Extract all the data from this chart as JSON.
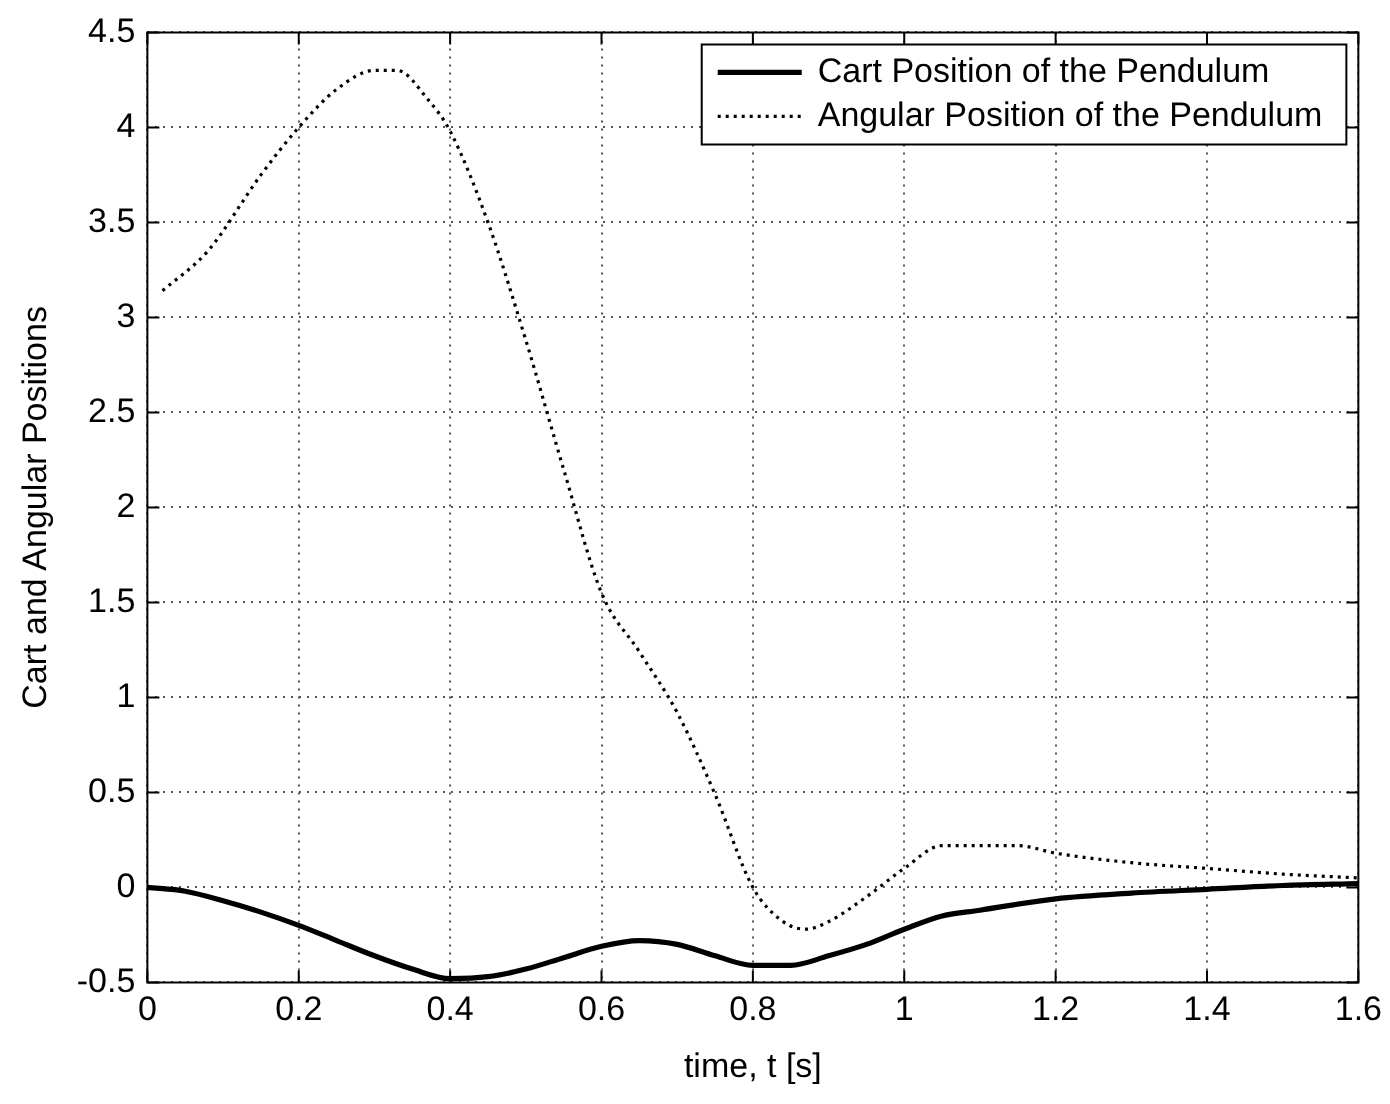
{
  "chart_data": {
    "type": "line",
    "xlabel": "time, t [s]",
    "ylabel": "Cart and Angular Positions",
    "xlim": [
      0,
      1.6
    ],
    "xticks": [
      0,
      0.2,
      0.4,
      0.6,
      0.8,
      1,
      1.2,
      1.4,
      1.6
    ],
    "ylim": [
      -0.5,
      4.5
    ],
    "yticks": [
      -0.5,
      0,
      0.5,
      1,
      1.5,
      2,
      2.5,
      3,
      3.5,
      4,
      4.5
    ],
    "grid": true,
    "legend": "top right",
    "marker": "none",
    "series": [
      {
        "name": "Cart Position of the Pendulum",
        "color": "#000000",
        "line_style": "solid",
        "x": [
          0,
          0.05,
          0.1,
          0.15,
          0.2,
          0.25,
          0.3,
          0.35,
          0.4,
          0.45,
          0.5,
          0.55,
          0.6,
          0.65,
          0.7,
          0.75,
          0.8,
          0.85,
          0.9,
          0.95,
          1.0,
          1.05,
          1.1,
          1.2,
          1.3,
          1.4,
          1.5,
          1.6
        ],
        "values": [
          0,
          -0.02,
          -0.07,
          -0.13,
          -0.2,
          -0.28,
          -0.36,
          -0.43,
          -0.48,
          -0.47,
          -0.43,
          -0.37,
          -0.31,
          -0.28,
          -0.3,
          -0.36,
          -0.41,
          -0.41,
          -0.36,
          -0.3,
          -0.22,
          -0.15,
          -0.12,
          -0.06,
          -0.03,
          -0.01,
          0.01,
          0.02
        ]
      },
      {
        "name": "Angular Position of the Pendulum",
        "color": "#000000",
        "line_style": "dotted",
        "x": [
          0.02,
          0.08,
          0.15,
          0.2,
          0.25,
          0.3,
          0.33,
          0.37,
          0.4,
          0.45,
          0.5,
          0.55,
          0.6,
          0.65,
          0.7,
          0.75,
          0.8,
          0.84,
          0.87,
          0.9,
          0.95,
          1.0,
          1.05,
          1.1,
          1.15,
          1.2,
          1.3,
          1.4,
          1.5,
          1.6
        ],
        "values": [
          3.14,
          3.35,
          3.75,
          4.0,
          4.2,
          4.3,
          4.3,
          4.15,
          3.98,
          3.5,
          2.88,
          2.2,
          1.55,
          1.24,
          0.92,
          0.49,
          0.0,
          -0.18,
          -0.22,
          -0.18,
          -0.05,
          0.1,
          0.22,
          0.22,
          0.22,
          0.18,
          0.13,
          0.1,
          0.07,
          0.05
        ]
      }
    ]
  }
}
